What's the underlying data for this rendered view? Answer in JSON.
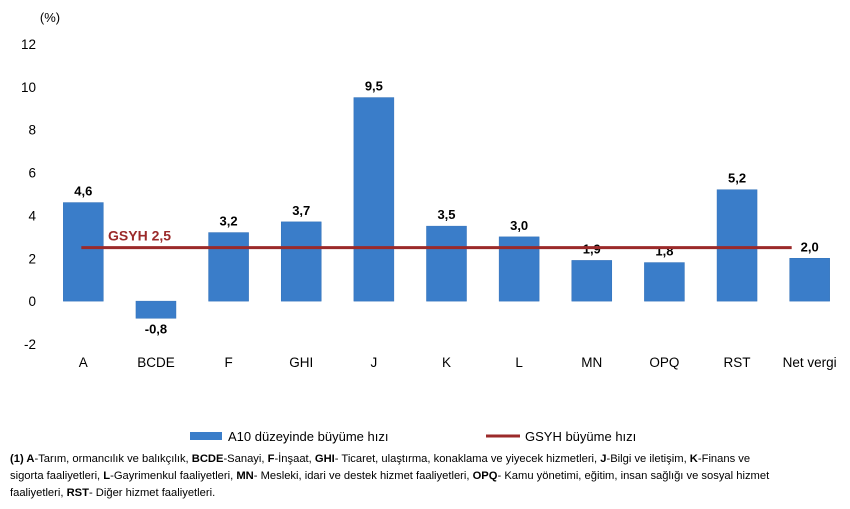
{
  "chart_data": {
    "type": "bar",
    "unit_label": "(%)",
    "categories": [
      "A",
      "BCDE",
      "F",
      "GHI",
      "J",
      "K",
      "L",
      "MN",
      "OPQ",
      "RST",
      "Net vergi"
    ],
    "series": [
      {
        "name": "A10 düzeyinde büyüme hızı",
        "type": "bar",
        "color": "#3a7dc9",
        "values": [
          4.6,
          -0.8,
          3.2,
          3.7,
          9.5,
          3.5,
          3.0,
          1.9,
          1.8,
          5.2,
          2.0
        ],
        "labels": [
          "4,6",
          "-0,8",
          "3,2",
          "3,7",
          "9,5",
          "3,5",
          "3,0",
          "1,9",
          "1,8",
          "5,2",
          "2,0"
        ]
      },
      {
        "name": "GSYH büyüme hızı",
        "type": "line",
        "color": "#9b2a2a",
        "value": 2.5,
        "label": "GSYH 2,5"
      }
    ],
    "ylim": [
      -2,
      12
    ],
    "yticks": [
      12,
      10,
      8,
      6,
      4,
      2,
      0,
      -2
    ],
    "legend_position": "bottom",
    "grid": false
  },
  "footnote": {
    "lines": [
      [
        {
          "t": "(1) ",
          "b": true
        },
        {
          "t": "A",
          "b": true
        },
        {
          "t": "-Tarım, ormancılık ve balıkçılık, ",
          "b": false
        },
        {
          "t": "BCDE",
          "b": true
        },
        {
          "t": "-Sanayi, ",
          "b": false
        },
        {
          "t": "F",
          "b": true
        },
        {
          "t": "-İnşaat, ",
          "b": false
        },
        {
          "t": "GHI",
          "b": true
        },
        {
          "t": "- Ticaret, ulaştırma, konaklama ve yiyecek hizmetleri, ",
          "b": false
        },
        {
          "t": "J",
          "b": true
        },
        {
          "t": "-Bilgi ve iletişim, ",
          "b": false
        },
        {
          "t": "K",
          "b": true
        },
        {
          "t": "-Finans ve",
          "b": false
        }
      ],
      [
        {
          "t": "sigorta faaliyetleri, ",
          "b": false
        },
        {
          "t": "L",
          "b": true
        },
        {
          "t": "-Gayrimenkul faaliyetleri, ",
          "b": false
        },
        {
          "t": "MN",
          "b": true
        },
        {
          "t": "- Mesleki, idari ve destek hizmet faaliyetleri, ",
          "b": false
        },
        {
          "t": "OPQ",
          "b": true
        },
        {
          "t": "- Kamu yönetimi, eğitim, insan sağlığı ve sosyal hizmet",
          "b": false
        }
      ],
      [
        {
          "t": "faaliyetleri, ",
          "b": false
        },
        {
          "t": "RST",
          "b": true
        },
        {
          "t": "- Diğer hizmet faaliyetleri.",
          "b": false
        }
      ]
    ]
  }
}
